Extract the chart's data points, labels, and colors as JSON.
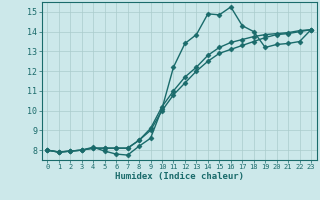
{
  "xlabel": "Humidex (Indice chaleur)",
  "ylabel": "",
  "bg_color": "#cce8ea",
  "line_color": "#1a6b6b",
  "grid_color": "#aacccc",
  "xlim": [
    -0.5,
    23.5
  ],
  "ylim": [
    7.5,
    15.5
  ],
  "xticks": [
    0,
    1,
    2,
    3,
    4,
    5,
    6,
    7,
    8,
    9,
    10,
    11,
    12,
    13,
    14,
    15,
    16,
    17,
    18,
    19,
    20,
    21,
    22,
    23
  ],
  "yticks": [
    8,
    9,
    10,
    11,
    12,
    13,
    14,
    15
  ],
  "series1_x": [
    0,
    1,
    2,
    3,
    4,
    5,
    6,
    7,
    8,
    9,
    10,
    11,
    12,
    13,
    14,
    15,
    16,
    17,
    18,
    19,
    20,
    21,
    22,
    23
  ],
  "series1_y": [
    8.0,
    7.9,
    7.95,
    8.0,
    8.15,
    7.95,
    7.8,
    7.75,
    8.2,
    8.6,
    10.1,
    12.2,
    13.4,
    13.85,
    14.9,
    14.85,
    15.25,
    14.3,
    14.0,
    13.2,
    13.35,
    13.4,
    13.5,
    14.1
  ],
  "series2_x": [
    0,
    1,
    2,
    3,
    4,
    5,
    6,
    7,
    8,
    9,
    10,
    11,
    12,
    13,
    14,
    15,
    16,
    17,
    18,
    19,
    20,
    21,
    22,
    23
  ],
  "series2_y": [
    8.0,
    7.9,
    7.95,
    8.0,
    8.1,
    8.1,
    8.1,
    8.1,
    8.5,
    9.0,
    10.0,
    10.8,
    11.4,
    12.0,
    12.5,
    12.9,
    13.1,
    13.3,
    13.5,
    13.7,
    13.85,
    13.9,
    14.0,
    14.1
  ],
  "series3_x": [
    0,
    1,
    2,
    3,
    4,
    5,
    6,
    7,
    8,
    9,
    10,
    11,
    12,
    13,
    14,
    15,
    16,
    17,
    18,
    19,
    20,
    21,
    22,
    23
  ],
  "series3_y": [
    8.0,
    7.9,
    7.95,
    8.0,
    8.1,
    8.1,
    8.1,
    8.1,
    8.5,
    9.1,
    10.2,
    11.0,
    11.7,
    12.2,
    12.8,
    13.2,
    13.45,
    13.6,
    13.75,
    13.85,
    13.9,
    13.95,
    14.05,
    14.1
  ],
  "marker": "D",
  "markersize": 2.5,
  "linewidth": 1.0
}
